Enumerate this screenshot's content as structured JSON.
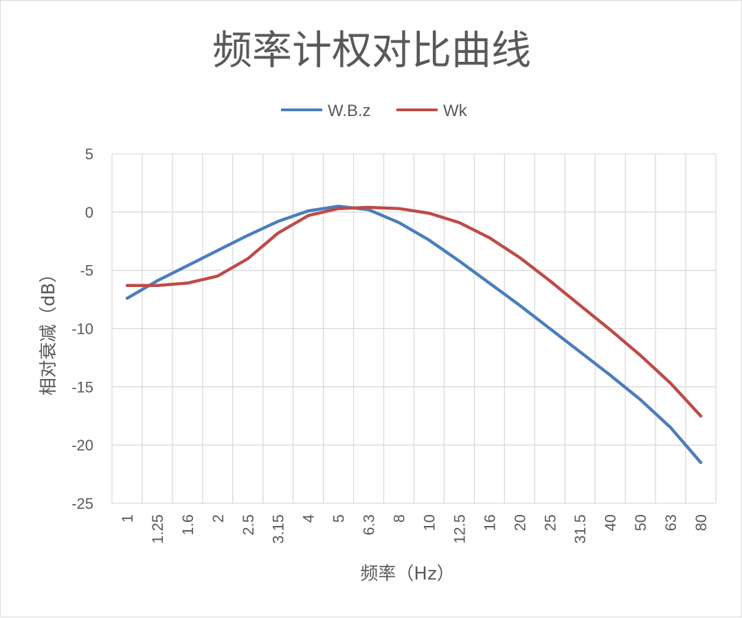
{
  "chart_data": {
    "type": "line",
    "title": "频率计权对比曲线",
    "xlabel": "频率（Hz）",
    "ylabel": "相对衰减（dB）",
    "categories": [
      "1",
      "1.25",
      "1.6",
      "2",
      "2.5",
      "3.15",
      "4",
      "5",
      "6.3",
      "8",
      "10",
      "12.5",
      "16",
      "20",
      "25",
      "31.5",
      "40",
      "50",
      "63",
      "80"
    ],
    "ylim": [
      -25,
      5
    ],
    "yticks": [
      5,
      0,
      -5,
      -10,
      -15,
      -20,
      -25
    ],
    "grid": true,
    "legend_position": "top",
    "series": [
      {
        "name": "W.B.z",
        "color": "#4a7ebb",
        "values": [
          -7.4,
          -5.9,
          -4.6,
          -3.3,
          -2.0,
          -0.8,
          0.1,
          0.5,
          0.2,
          -0.9,
          -2.4,
          -4.2,
          -6.1,
          -8.0,
          -10.0,
          -12.0,
          -14.0,
          -16.1,
          -18.5,
          -21.5
        ]
      },
      {
        "name": "Wk",
        "color": "#be4b48",
        "values": [
          -6.3,
          -6.3,
          -6.1,
          -5.5,
          -4.0,
          -1.8,
          -0.3,
          0.3,
          0.4,
          0.3,
          -0.1,
          -0.9,
          -2.2,
          -3.9,
          -5.9,
          -8.0,
          -10.1,
          -12.3,
          -14.7,
          -17.5
        ]
      }
    ]
  }
}
